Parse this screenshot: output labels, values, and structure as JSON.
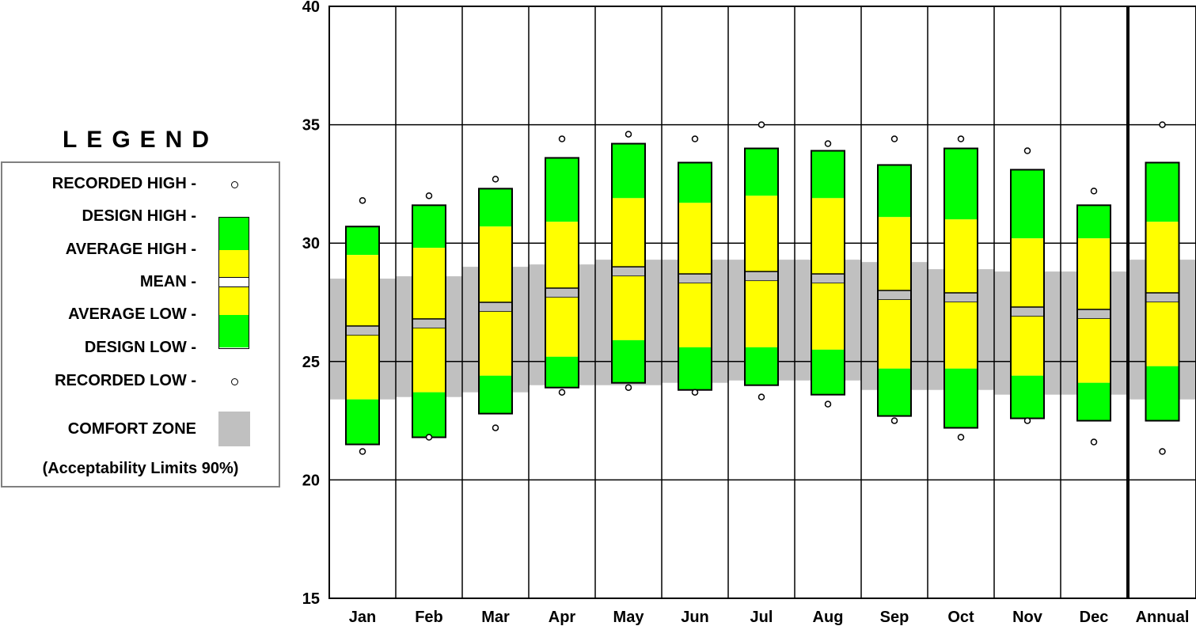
{
  "legend": {
    "title": "LEGEND",
    "recorded_high": "RECORDED HIGH -",
    "design_high": "DESIGN HIGH -",
    "average_high": "AVERAGE HIGH -",
    "mean": "MEAN -",
    "average_low": "AVERAGE LOW -",
    "design_low": "DESIGN LOW -",
    "recorded_low": "RECORDED LOW -",
    "comfort_zone": "COMFORT ZONE",
    "note": "(Acceptability Limits 90%)"
  },
  "colors": {
    "design_band": "#00ff00",
    "average_band": "#ffff00",
    "mean_band": "#c0c0c0",
    "comfort_zone": "#c0c0c0",
    "grid": "#000000"
  },
  "chart_data": {
    "type": "bar",
    "title": "",
    "xlabel": "",
    "ylabel": "",
    "ylim": [
      15,
      40
    ],
    "yticks": [
      15,
      20,
      25,
      30,
      35,
      40
    ],
    "grid": true,
    "categories": [
      "Jan",
      "Feb",
      "Mar",
      "Apr",
      "May",
      "Jun",
      "Jul",
      "Aug",
      "Sep",
      "Oct",
      "Nov",
      "Dec",
      "Annual"
    ],
    "series": [
      {
        "name": "RECORDED HIGH",
        "values": [
          31.8,
          32.0,
          32.7,
          34.4,
          34.6,
          34.4,
          35.0,
          34.2,
          34.4,
          34.4,
          33.9,
          32.2,
          35.0
        ]
      },
      {
        "name": "DESIGN HIGH",
        "values": [
          30.7,
          31.6,
          32.3,
          33.6,
          34.2,
          33.4,
          34.0,
          33.9,
          33.3,
          34.0,
          33.1,
          31.6,
          33.4
        ]
      },
      {
        "name": "AVERAGE HIGH",
        "values": [
          29.5,
          29.8,
          30.7,
          30.9,
          31.9,
          31.7,
          32.0,
          31.9,
          31.1,
          31.0,
          30.2,
          30.2,
          30.9
        ]
      },
      {
        "name": "MEAN",
        "values": [
          26.3,
          26.6,
          27.3,
          27.9,
          28.8,
          28.5,
          28.6,
          28.5,
          27.8,
          27.7,
          27.1,
          27.0,
          27.7
        ]
      },
      {
        "name": "AVERAGE LOW",
        "values": [
          23.4,
          23.7,
          24.4,
          25.2,
          25.9,
          25.6,
          25.6,
          25.5,
          24.7,
          24.7,
          24.4,
          24.1,
          24.8
        ]
      },
      {
        "name": "DESIGN LOW",
        "values": [
          21.5,
          21.8,
          22.8,
          23.9,
          24.1,
          23.8,
          24.0,
          23.6,
          22.7,
          22.2,
          22.6,
          22.5,
          22.5
        ]
      },
      {
        "name": "RECORDED LOW",
        "values": [
          21.2,
          21.8,
          22.2,
          23.7,
          23.9,
          23.7,
          23.5,
          23.2,
          22.5,
          21.8,
          22.5,
          21.6,
          21.2
        ]
      }
    ],
    "comfort_zone": {
      "name": "COMFORT ZONE",
      "upper": [
        28.5,
        28.6,
        29.0,
        29.1,
        29.3,
        29.3,
        29.3,
        29.3,
        29.2,
        28.9,
        28.8,
        28.8,
        29.3
      ],
      "lower": [
        23.4,
        23.5,
        23.7,
        24.0,
        24.0,
        24.1,
        24.2,
        24.2,
        23.8,
        23.8,
        23.6,
        23.6,
        23.4
      ]
    },
    "annual_reference_line": 25
  }
}
